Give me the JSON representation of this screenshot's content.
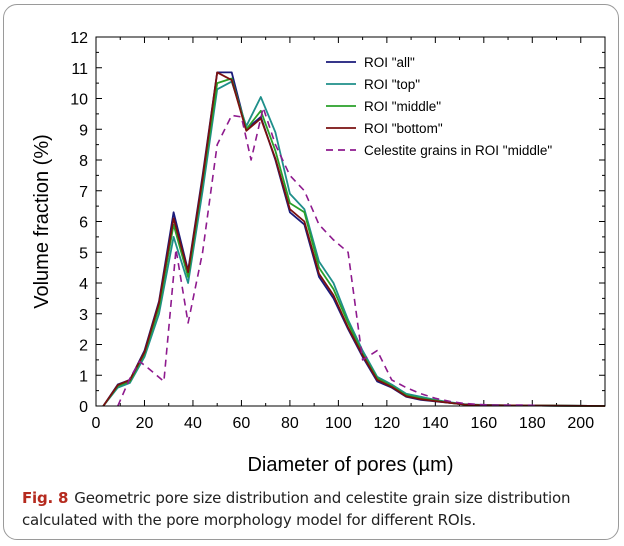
{
  "chart_data": {
    "type": "line",
    "xlabel": "Diameter of pores (µm)",
    "ylabel": "Volume fraction (%)",
    "xlim": [
      0,
      210
    ],
    "ylim": [
      0,
      12
    ],
    "xticks": [
      "0",
      "20",
      "40",
      "60",
      "80",
      "100",
      "120",
      "140",
      "160",
      "180",
      "200"
    ],
    "yticks": [
      "0",
      "1",
      "2",
      "3",
      "4",
      "5",
      "6",
      "7",
      "8",
      "9",
      "10",
      "11",
      "12"
    ],
    "legend_position": "top-right",
    "series": [
      {
        "name": "ROI \"all\"",
        "color": "#1a1a7a",
        "dash": "solid",
        "points": [
          [
            3,
            0
          ],
          [
            9,
            0.7
          ],
          [
            14,
            0.85
          ],
          [
            20,
            1.8
          ],
          [
            26,
            3.4
          ],
          [
            32,
            6.3
          ],
          [
            38,
            4.4
          ],
          [
            44,
            7.5
          ],
          [
            50,
            10.85
          ],
          [
            56,
            10.85
          ],
          [
            62,
            9.0
          ],
          [
            68,
            9.4
          ],
          [
            74,
            8.0
          ],
          [
            80,
            6.3
          ],
          [
            86,
            5.9
          ],
          [
            92,
            4.2
          ],
          [
            98,
            3.5
          ],
          [
            104,
            2.5
          ],
          [
            110,
            1.6
          ],
          [
            116,
            0.8
          ],
          [
            122,
            0.6
          ],
          [
            128,
            0.3
          ],
          [
            134,
            0.2
          ],
          [
            140,
            0.15
          ],
          [
            146,
            0.1
          ],
          [
            152,
            0.05
          ],
          [
            158,
            0.03
          ],
          [
            170,
            0.02
          ],
          [
            190,
            0.01
          ],
          [
            210,
            0
          ]
        ]
      },
      {
        "name": "ROI \"top\"",
        "color": "#1f8f8a",
        "dash": "solid",
        "points": [
          [
            3,
            0
          ],
          [
            9,
            0.6
          ],
          [
            14,
            0.75
          ],
          [
            20,
            1.6
          ],
          [
            26,
            3.0
          ],
          [
            32,
            5.5
          ],
          [
            38,
            4.0
          ],
          [
            44,
            7.0
          ],
          [
            50,
            10.3
          ],
          [
            56,
            10.55
          ],
          [
            62,
            9.1
          ],
          [
            68,
            10.05
          ],
          [
            74,
            8.9
          ],
          [
            80,
            6.9
          ],
          [
            86,
            6.4
          ],
          [
            92,
            4.7
          ],
          [
            98,
            4.0
          ],
          [
            104,
            2.8
          ],
          [
            110,
            1.8
          ],
          [
            116,
            0.95
          ],
          [
            122,
            0.7
          ],
          [
            128,
            0.4
          ],
          [
            134,
            0.3
          ],
          [
            140,
            0.2
          ],
          [
            146,
            0.12
          ],
          [
            152,
            0.06
          ],
          [
            158,
            0.04
          ],
          [
            170,
            0.02
          ],
          [
            190,
            0.01
          ],
          [
            210,
            0
          ]
        ]
      },
      {
        "name": "ROI \"middle\"",
        "color": "#2aa02a",
        "dash": "solid",
        "points": [
          [
            3,
            0
          ],
          [
            9,
            0.65
          ],
          [
            14,
            0.8
          ],
          [
            20,
            1.7
          ],
          [
            26,
            3.2
          ],
          [
            32,
            5.9
          ],
          [
            38,
            4.2
          ],
          [
            44,
            7.3
          ],
          [
            50,
            10.5
          ],
          [
            56,
            10.65
          ],
          [
            62,
            9.0
          ],
          [
            68,
            9.6
          ],
          [
            74,
            8.3
          ],
          [
            80,
            6.6
          ],
          [
            86,
            6.3
          ],
          [
            92,
            4.5
          ],
          [
            98,
            3.8
          ],
          [
            104,
            2.7
          ],
          [
            110,
            1.7
          ],
          [
            116,
            0.9
          ],
          [
            122,
            0.65
          ],
          [
            128,
            0.35
          ],
          [
            134,
            0.25
          ],
          [
            140,
            0.18
          ],
          [
            146,
            0.1
          ],
          [
            152,
            0.05
          ],
          [
            158,
            0.03
          ],
          [
            170,
            0.02
          ],
          [
            190,
            0.01
          ],
          [
            210,
            0
          ]
        ]
      },
      {
        "name": "ROI \"bottom\"",
        "color": "#7a1010",
        "dash": "solid",
        "points": [
          [
            3,
            0
          ],
          [
            9,
            0.68
          ],
          [
            14,
            0.85
          ],
          [
            20,
            1.75
          ],
          [
            26,
            3.35
          ],
          [
            32,
            6.1
          ],
          [
            38,
            4.35
          ],
          [
            44,
            7.4
          ],
          [
            50,
            10.85
          ],
          [
            56,
            10.6
          ],
          [
            62,
            8.95
          ],
          [
            68,
            9.35
          ],
          [
            74,
            8.05
          ],
          [
            80,
            6.4
          ],
          [
            86,
            6.0
          ],
          [
            92,
            4.3
          ],
          [
            98,
            3.6
          ],
          [
            104,
            2.55
          ],
          [
            110,
            1.65
          ],
          [
            116,
            0.85
          ],
          [
            122,
            0.62
          ],
          [
            128,
            0.32
          ],
          [
            134,
            0.22
          ],
          [
            140,
            0.16
          ],
          [
            146,
            0.1
          ],
          [
            152,
            0.05
          ],
          [
            158,
            0.03
          ],
          [
            170,
            0.02
          ],
          [
            190,
            0.01
          ],
          [
            210,
            0
          ]
        ]
      },
      {
        "name": "Celestite grains in ROI \"middle\"",
        "color": "#8e1a8e",
        "dash": "dashed",
        "points": [
          [
            9,
            0
          ],
          [
            14,
            0.9
          ],
          [
            18,
            1.45
          ],
          [
            22,
            1.2
          ],
          [
            28,
            0.8
          ],
          [
            33,
            5.1
          ],
          [
            38,
            2.7
          ],
          [
            44,
            5.0
          ],
          [
            50,
            8.5
          ],
          [
            56,
            9.45
          ],
          [
            60,
            9.4
          ],
          [
            64,
            8.0
          ],
          [
            69,
            9.7
          ],
          [
            74,
            8.5
          ],
          [
            80,
            7.5
          ],
          [
            86,
            7.0
          ],
          [
            92,
            5.9
          ],
          [
            98,
            5.4
          ],
          [
            104,
            5.0
          ],
          [
            110,
            1.5
          ],
          [
            116,
            1.8
          ],
          [
            122,
            0.85
          ],
          [
            128,
            0.6
          ],
          [
            134,
            0.4
          ],
          [
            140,
            0.25
          ],
          [
            146,
            0.15
          ],
          [
            152,
            0.08
          ],
          [
            158,
            0.05
          ],
          [
            164,
            0.03
          ],
          [
            170,
            0.03
          ],
          [
            176,
            0.03
          ],
          [
            182,
            0.02
          ]
        ]
      }
    ]
  },
  "caption": {
    "label": "Fig. 8",
    "text": "Geometric pore size distribution and celestite grain size distribution calculated with the pore morphology model for different ROIs."
  }
}
